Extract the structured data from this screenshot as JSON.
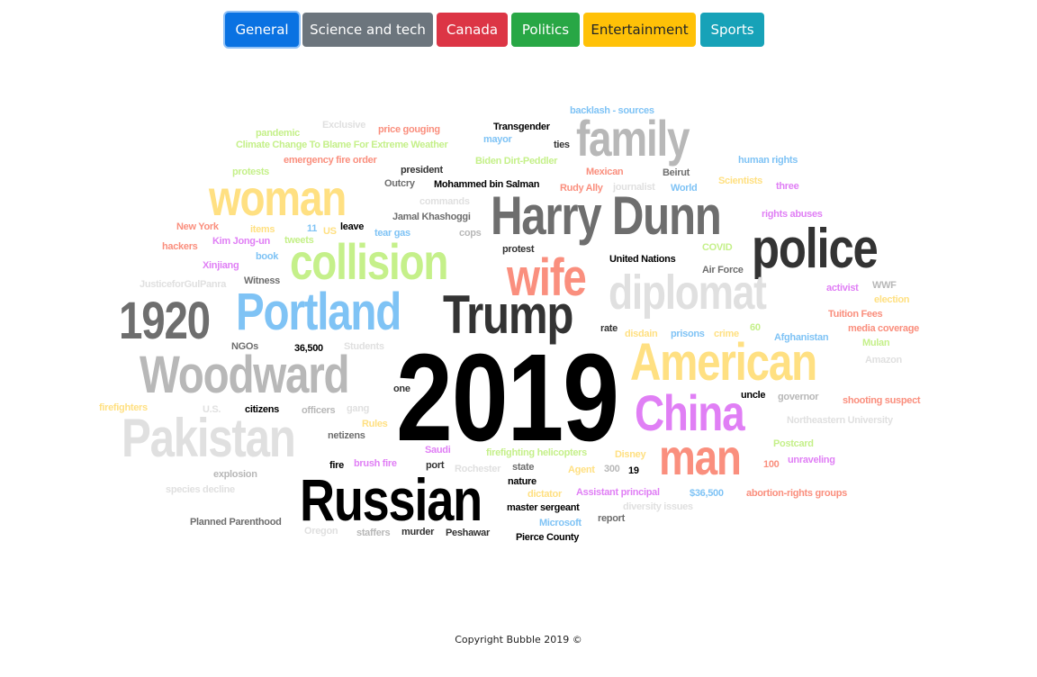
{
  "nav": {
    "tabs": [
      {
        "label": "General",
        "color": "#0a72e2",
        "text_color": "#ffffff",
        "active": true
      },
      {
        "label": "Science and tech",
        "color": "#6c757d",
        "text_color": "#ffffff",
        "active": false
      },
      {
        "label": "Canada",
        "color": "#dc3545",
        "text_color": "#ffffff",
        "active": false
      },
      {
        "label": "Politics",
        "color": "#28a745",
        "text_color": "#ffffff",
        "active": false
      },
      {
        "label": "Entertainment",
        "color": "#ffc107",
        "text_color": "#212529",
        "active": false
      },
      {
        "label": "Sports",
        "color": "#17a2b8",
        "text_color": "#ffffff",
        "active": false
      }
    ]
  },
  "cloud": {
    "words": [
      {
        "text": "2019",
        "color": "#000000"
      },
      {
        "text": "Russian",
        "color": "#000000"
      },
      {
        "text": "Harry Dunn",
        "color": "#6e6e6e"
      },
      {
        "text": "police",
        "color": "#333333"
      },
      {
        "text": "family",
        "color": "#b8b8b8"
      },
      {
        "text": "diplomat",
        "color": "#e0e0e0"
      },
      {
        "text": "American",
        "color": "#ffe082"
      },
      {
        "text": "China",
        "color": "#e07ff5"
      },
      {
        "text": "man",
        "color": "#fa8f7e"
      },
      {
        "text": "Woodward",
        "color": "#b8b8b8"
      },
      {
        "text": "Pakistan",
        "color": "#e0e0e0"
      },
      {
        "text": "1920",
        "color": "#6e6e6e"
      },
      {
        "text": "Portland",
        "color": "#7fc3f5"
      },
      {
        "text": "Trump",
        "color": "#333333"
      },
      {
        "text": "collision",
        "color": "#c5f08a"
      },
      {
        "text": "woman",
        "color": "#ffe082"
      },
      {
        "text": "wife",
        "color": "#fa8f7e"
      },
      {
        "text": "backlash - sources",
        "color": "#7fc3f5"
      },
      {
        "text": "Exclusive",
        "color": "#e0e0e0"
      },
      {
        "text": "price gouging",
        "color": "#fa8f7e"
      },
      {
        "text": "Transgender",
        "color": "#000000"
      },
      {
        "text": "pandemic",
        "color": "#c5f08a"
      },
      {
        "text": "mayor",
        "color": "#7fc3f5"
      },
      {
        "text": "ties",
        "color": "#333333"
      },
      {
        "text": "Climate Change To Blame For Extreme Weather",
        "color": "#c5f08a"
      },
      {
        "text": "emergency fire order",
        "color": "#fa8f7e"
      },
      {
        "text": "Biden Dirt-Peddler",
        "color": "#c5f08a"
      },
      {
        "text": "human rights",
        "color": "#7fc3f5"
      },
      {
        "text": "protests",
        "color": "#c5f08a"
      },
      {
        "text": "president",
        "color": "#333333"
      },
      {
        "text": "Mexican",
        "color": "#fa8f7e"
      },
      {
        "text": "Beirut",
        "color": "#6e6e6e"
      },
      {
        "text": "Outcry",
        "color": "#6e6e6e"
      },
      {
        "text": "Mohammed bin Salman",
        "color": "#000000"
      },
      {
        "text": "Rudy Ally",
        "color": "#fa8f7e"
      },
      {
        "text": "journalist",
        "color": "#e0e0e0"
      },
      {
        "text": "World",
        "color": "#7fc3f5"
      },
      {
        "text": "Scientists",
        "color": "#ffe082"
      },
      {
        "text": "three",
        "color": "#e07ff5"
      },
      {
        "text": "commands",
        "color": "#e0e0e0"
      },
      {
        "text": "Jamal Khashoggi",
        "color": "#6e6e6e"
      },
      {
        "text": "rights abuses",
        "color": "#e07ff5"
      },
      {
        "text": "New York",
        "color": "#fa8f7e"
      },
      {
        "text": "items",
        "color": "#ffe082"
      },
      {
        "text": "11",
        "color": "#7fc3f5"
      },
      {
        "text": "US",
        "color": "#ffe082"
      },
      {
        "text": "leave",
        "color": "#000000"
      },
      {
        "text": "tear gas",
        "color": "#7fc3f5"
      },
      {
        "text": "cops",
        "color": "#b8b8b8"
      },
      {
        "text": "hackers",
        "color": "#fa8f7e"
      },
      {
        "text": "Kim Jong-un",
        "color": "#e07ff5"
      },
      {
        "text": "tweets",
        "color": "#c5f08a"
      },
      {
        "text": "COVID",
        "color": "#c5f08a"
      },
      {
        "text": "protest",
        "color": "#333333"
      },
      {
        "text": "book",
        "color": "#7fc3f5"
      },
      {
        "text": "United Nations",
        "color": "#000000"
      },
      {
        "text": "Xinjiang",
        "color": "#e07ff5"
      },
      {
        "text": "Air Force",
        "color": "#6e6e6e"
      },
      {
        "text": "JusticeforGulPanra",
        "color": "#e0e0e0"
      },
      {
        "text": "Witness",
        "color": "#6e6e6e"
      },
      {
        "text": "WWF",
        "color": "#b8b8b8"
      },
      {
        "text": "activist",
        "color": "#e07ff5"
      },
      {
        "text": "election",
        "color": "#ffe082"
      },
      {
        "text": "Tuition Fees",
        "color": "#fa8f7e"
      },
      {
        "text": "60",
        "color": "#c5f08a"
      },
      {
        "text": "rate",
        "color": "#333333"
      },
      {
        "text": "disdain",
        "color": "#ffe082"
      },
      {
        "text": "prisons",
        "color": "#7fc3f5"
      },
      {
        "text": "crime",
        "color": "#ffe082"
      },
      {
        "text": "media coverage",
        "color": "#fa8f7e"
      },
      {
        "text": "Afghanistan",
        "color": "#7fc3f5"
      },
      {
        "text": "NGOs",
        "color": "#6e6e6e"
      },
      {
        "text": "36,500",
        "color": "#000000"
      },
      {
        "text": "Students",
        "color": "#e0e0e0"
      },
      {
        "text": "Mulan",
        "color": "#c5f08a"
      },
      {
        "text": "Amazon",
        "color": "#e0e0e0"
      },
      {
        "text": "one",
        "color": "#333333"
      },
      {
        "text": "uncle",
        "color": "#000000"
      },
      {
        "text": "governor",
        "color": "#b8b8b8"
      },
      {
        "text": "shooting suspect",
        "color": "#fa8f7e"
      },
      {
        "text": "firefighters",
        "color": "#ffe082"
      },
      {
        "text": "U.S.",
        "color": "#e0e0e0"
      },
      {
        "text": "citizens",
        "color": "#000000"
      },
      {
        "text": "officers",
        "color": "#b8b8b8"
      },
      {
        "text": "gang",
        "color": "#e0e0e0"
      },
      {
        "text": "Northeastern University",
        "color": "#e0e0e0"
      },
      {
        "text": "Rules",
        "color": "#ffe082"
      },
      {
        "text": "netizens",
        "color": "#6e6e6e"
      },
      {
        "text": "Saudi",
        "color": "#e07ff5"
      },
      {
        "text": "firefighting helicopters",
        "color": "#c5f08a"
      },
      {
        "text": "Disney",
        "color": "#ffe082"
      },
      {
        "text": "Postcard",
        "color": "#c5f08a"
      },
      {
        "text": "explosion",
        "color": "#b8b8b8"
      },
      {
        "text": "fire",
        "color": "#000000"
      },
      {
        "text": "brush fire",
        "color": "#e07ff5"
      },
      {
        "text": "port",
        "color": "#333333"
      },
      {
        "text": "Rochester",
        "color": "#e0e0e0"
      },
      {
        "text": "state",
        "color": "#6e6e6e"
      },
      {
        "text": "Agent",
        "color": "#ffe082"
      },
      {
        "text": "300",
        "color": "#b8b8b8"
      },
      {
        "text": "19",
        "color": "#000000"
      },
      {
        "text": "100",
        "color": "#fa8f7e"
      },
      {
        "text": "unraveling",
        "color": "#e07ff5"
      },
      {
        "text": "species decline",
        "color": "#e0e0e0"
      },
      {
        "text": "nature",
        "color": "#000000"
      },
      {
        "text": "dictator",
        "color": "#ffe082"
      },
      {
        "text": "Assistant principal",
        "color": "#e07ff5"
      },
      {
        "text": "$36,500",
        "color": "#7fc3f5"
      },
      {
        "text": "abortion-rights groups",
        "color": "#fa8f7e"
      },
      {
        "text": "master sergeant",
        "color": "#000000"
      },
      {
        "text": "diversity issues",
        "color": "#e0e0e0"
      },
      {
        "text": "Planned Parenthood",
        "color": "#6e6e6e"
      },
      {
        "text": "Microsoft",
        "color": "#7fc3f5"
      },
      {
        "text": "report",
        "color": "#6e6e6e"
      },
      {
        "text": "Oregon",
        "color": "#e0e0e0"
      },
      {
        "text": "staffers",
        "color": "#b8b8b8"
      },
      {
        "text": "murder",
        "color": "#333333"
      },
      {
        "text": "Peshawar",
        "color": "#333333"
      },
      {
        "text": "Pierce County",
        "color": "#000000"
      }
    ]
  },
  "footer": {
    "text": "Copyright Bubble 2019 ©"
  }
}
